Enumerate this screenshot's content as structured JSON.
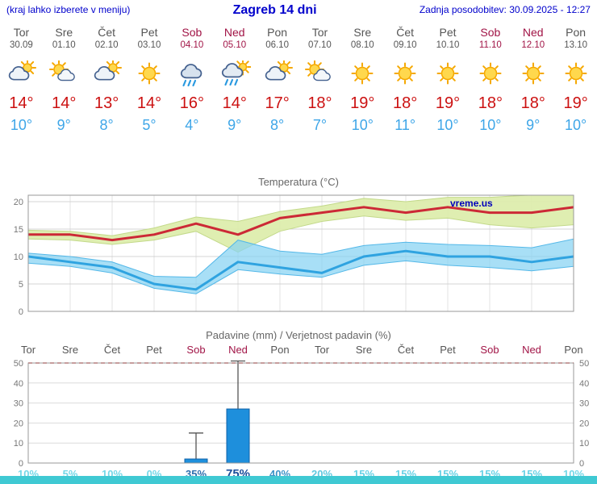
{
  "header": {
    "note": "(kraj lahko izberete v meniju)",
    "title": "Zagreb 14 dni",
    "updated": "Zadnja posodobitev: 30.09.2025 - 12:27"
  },
  "colors": {
    "accent_blue": "#0000cc",
    "temp_max": "#cc1111",
    "temp_min": "#3ea6e8",
    "weekday": "#555555",
    "weekend": "#a11446",
    "bottom_strip": "#3fc9d3"
  },
  "days": [
    {
      "name": "Tor",
      "date": "30.09",
      "weekend": false,
      "icon": "cloud-sun",
      "tmax": "14°",
      "tmin": "10°"
    },
    {
      "name": "Sre",
      "date": "01.10",
      "weekend": false,
      "icon": "sun-cloud",
      "tmax": "14°",
      "tmin": "9°"
    },
    {
      "name": "Čet",
      "date": "02.10",
      "weekend": false,
      "icon": "cloud-sun",
      "tmax": "13°",
      "tmin": "8°"
    },
    {
      "name": "Pet",
      "date": "03.10",
      "weekend": false,
      "icon": "sun",
      "tmax": "14°",
      "tmin": "5°"
    },
    {
      "name": "Sob",
      "date": "04.10",
      "weekend": true,
      "icon": "rain",
      "tmax": "16°",
      "tmin": "4°"
    },
    {
      "name": "Ned",
      "date": "05.10",
      "weekend": true,
      "icon": "rain-sun",
      "tmax": "14°",
      "tmin": "9°"
    },
    {
      "name": "Pon",
      "date": "06.10",
      "weekend": false,
      "icon": "cloud-sun",
      "tmax": "17°",
      "tmin": "8°"
    },
    {
      "name": "Tor",
      "date": "07.10",
      "weekend": false,
      "icon": "sun-cloud",
      "tmax": "18°",
      "tmin": "7°"
    },
    {
      "name": "Sre",
      "date": "08.10",
      "weekend": false,
      "icon": "sun",
      "tmax": "19°",
      "tmin": "10°"
    },
    {
      "name": "Čet",
      "date": "09.10",
      "weekend": false,
      "icon": "sun",
      "tmax": "18°",
      "tmin": "11°"
    },
    {
      "name": "Pet",
      "date": "10.10",
      "weekend": false,
      "icon": "sun",
      "tmax": "19°",
      "tmin": "10°"
    },
    {
      "name": "Sob",
      "date": "11.10",
      "weekend": true,
      "icon": "sun",
      "tmax": "18°",
      "tmin": "10°"
    },
    {
      "name": "Ned",
      "date": "12.10",
      "weekend": true,
      "icon": "sun",
      "tmax": "18°",
      "tmin": "9°"
    },
    {
      "name": "Pon",
      "date": "13.10",
      "weekend": false,
      "icon": "sun",
      "tmax": "19°",
      "tmin": "10°"
    }
  ],
  "chart_data": [
    {
      "type": "line",
      "title": "Temperatura (°C)",
      "watermark": "vreme.us",
      "categories": [
        "Tor 30.09",
        "Sre 01.10",
        "Čet 02.10",
        "Pet 03.10",
        "Sob 04.10",
        "Ned 05.10",
        "Pon 06.10",
        "Tor 07.10",
        "Sre 08.10",
        "Čet 09.10",
        "Pet 10.10",
        "Sob 11.10",
        "Ned 12.10",
        "Pon 13.10"
      ],
      "yticks": [
        0,
        5,
        10,
        15,
        20
      ],
      "ylim": [
        0,
        21.5
      ],
      "grid": true,
      "legend_position": "none",
      "series": [
        {
          "name": "Tmax",
          "color": "#cc2936",
          "width": 3,
          "values": [
            14,
            14,
            13,
            14,
            16,
            14,
            17,
            18,
            19,
            18,
            19,
            18,
            18,
            19
          ]
        },
        {
          "name": "Tmin",
          "color": "#2fa3e0",
          "width": 3,
          "values": [
            10,
            9,
            8,
            5,
            4,
            9,
            8,
            7,
            10,
            11,
            10,
            10,
            9,
            10
          ]
        }
      ],
      "bands": [
        {
          "name": "Tmax-range",
          "fill": "#dcedaa",
          "opacity": 0.92,
          "edge": "#c3d98a",
          "upper": [
            14.8,
            14.6,
            13.8,
            15.2,
            17.2,
            16.4,
            18.2,
            19.2,
            20.6,
            20.0,
            20.8,
            20.8,
            21.2,
            22.8
          ],
          "lower": [
            13.2,
            13.0,
            12.2,
            13.0,
            14.6,
            10.8,
            14.6,
            16.4,
            17.4,
            16.6,
            17.0,
            15.8,
            15.2,
            15.8
          ]
        },
        {
          "name": "Tmin-range",
          "fill": "#86d2f2",
          "opacity": 0.72,
          "edge": "#54b8e8",
          "upper": [
            10.6,
            10.0,
            9.0,
            6.4,
            6.2,
            13.0,
            11.0,
            10.4,
            12.0,
            12.6,
            12.2,
            12.0,
            11.6,
            13.2
          ],
          "lower": [
            8.8,
            8.2,
            7.0,
            4.2,
            3.2,
            7.6,
            6.8,
            6.2,
            8.4,
            9.2,
            8.4,
            8.0,
            7.4,
            8.2
          ]
        }
      ]
    },
    {
      "type": "bar",
      "title": "Padavine (mm) / Verjetnost padavin (%)",
      "categories": [
        "Tor",
        "Sre",
        "Čet",
        "Pet",
        "Sob",
        "Ned",
        "Pon",
        "Tor",
        "Sre",
        "Čet",
        "Pet",
        "Sob",
        "Ned",
        "Pon"
      ],
      "weekend": [
        false,
        false,
        false,
        false,
        true,
        true,
        false,
        false,
        false,
        false,
        false,
        true,
        true,
        false
      ],
      "values": [
        0,
        0,
        0,
        0,
        2,
        27,
        0,
        0,
        0,
        0,
        0,
        0,
        0,
        0
      ],
      "whisker_max": [
        0,
        0,
        0,
        0,
        15,
        51,
        0,
        0,
        0,
        0,
        0,
        0,
        0,
        0
      ],
      "bar_color": "#1e8fdc",
      "bar_border": "#0f62a8",
      "yticks": [
        0,
        10,
        20,
        30,
        40,
        50
      ],
      "ylim": [
        0,
        52
      ],
      "grid": true,
      "limit_line": {
        "value": 50,
        "color": "#e84444"
      },
      "probabilities": [
        {
          "label": "10%",
          "color": "#74d8e8",
          "bold": true
        },
        {
          "label": "5%",
          "color": "#74d8e8",
          "bold": true
        },
        {
          "label": "10%",
          "color": "#74d8e8",
          "bold": true
        },
        {
          "label": "0%",
          "color": "#74d8e8",
          "bold": true
        },
        {
          "label": "35%",
          "color": "#2e6fae",
          "bold": true
        },
        {
          "label": "75%",
          "color": "#1b4e9b",
          "bold": true
        },
        {
          "label": "40%",
          "color": "#3e93c8",
          "bold": true
        },
        {
          "label": "20%",
          "color": "#5fc9e0",
          "bold": true
        },
        {
          "label": "15%",
          "color": "#68d2e6",
          "bold": true
        },
        {
          "label": "15%",
          "color": "#68d2e6",
          "bold": true
        },
        {
          "label": "15%",
          "color": "#68d2e6",
          "bold": true
        },
        {
          "label": "15%",
          "color": "#68d2e6",
          "bold": true
        },
        {
          "label": "15%",
          "color": "#68d2e6",
          "bold": true
        },
        {
          "label": "10%",
          "color": "#74d8e8",
          "bold": true
        }
      ]
    }
  ]
}
